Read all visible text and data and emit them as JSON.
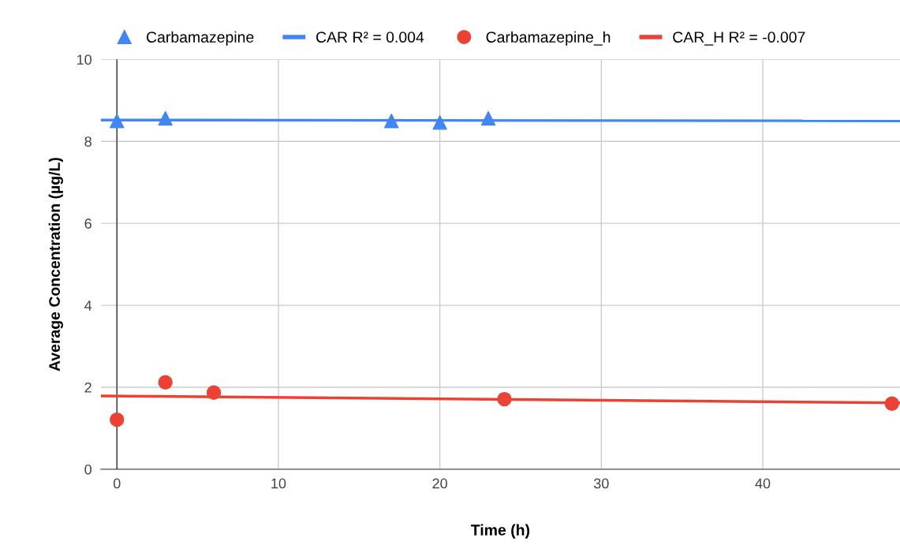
{
  "chart_data": {
    "type": "scatter",
    "xlabel": "Time (h)",
    "ylabel": "Average Concentration (µg/L)",
    "xlim": [
      -1,
      48.5
    ],
    "ylim": [
      0,
      10
    ],
    "xticks": [
      0,
      10,
      20,
      30,
      40
    ],
    "yticks": [
      0,
      2,
      4,
      6,
      8,
      10
    ],
    "grid": true,
    "legend": "top",
    "series": [
      {
        "name": "Carbamazepine",
        "marker": "triangle",
        "color": "#4285f4",
        "x": [
          0,
          3,
          17,
          20,
          23
        ],
        "values": [
          8.5,
          8.56,
          8.5,
          8.46,
          8.56
        ]
      },
      {
        "name": "CAR R² = 0.004",
        "type": "line",
        "marker": "none",
        "color": "#4285f4",
        "x": [
          -1,
          48.5
        ],
        "values": [
          8.52,
          8.5
        ]
      },
      {
        "name": "Carbamazepine_h",
        "marker": "circle",
        "color": "#ea4335",
        "x": [
          0,
          3,
          6,
          24,
          48
        ],
        "values": [
          1.21,
          2.12,
          1.87,
          1.71,
          1.6
        ]
      },
      {
        "name": "CAR_H R² = -0.007",
        "type": "line",
        "marker": "none",
        "color": "#ea4335",
        "x": [
          -1,
          48.5
        ],
        "values": [
          1.79,
          1.62
        ]
      }
    ]
  }
}
